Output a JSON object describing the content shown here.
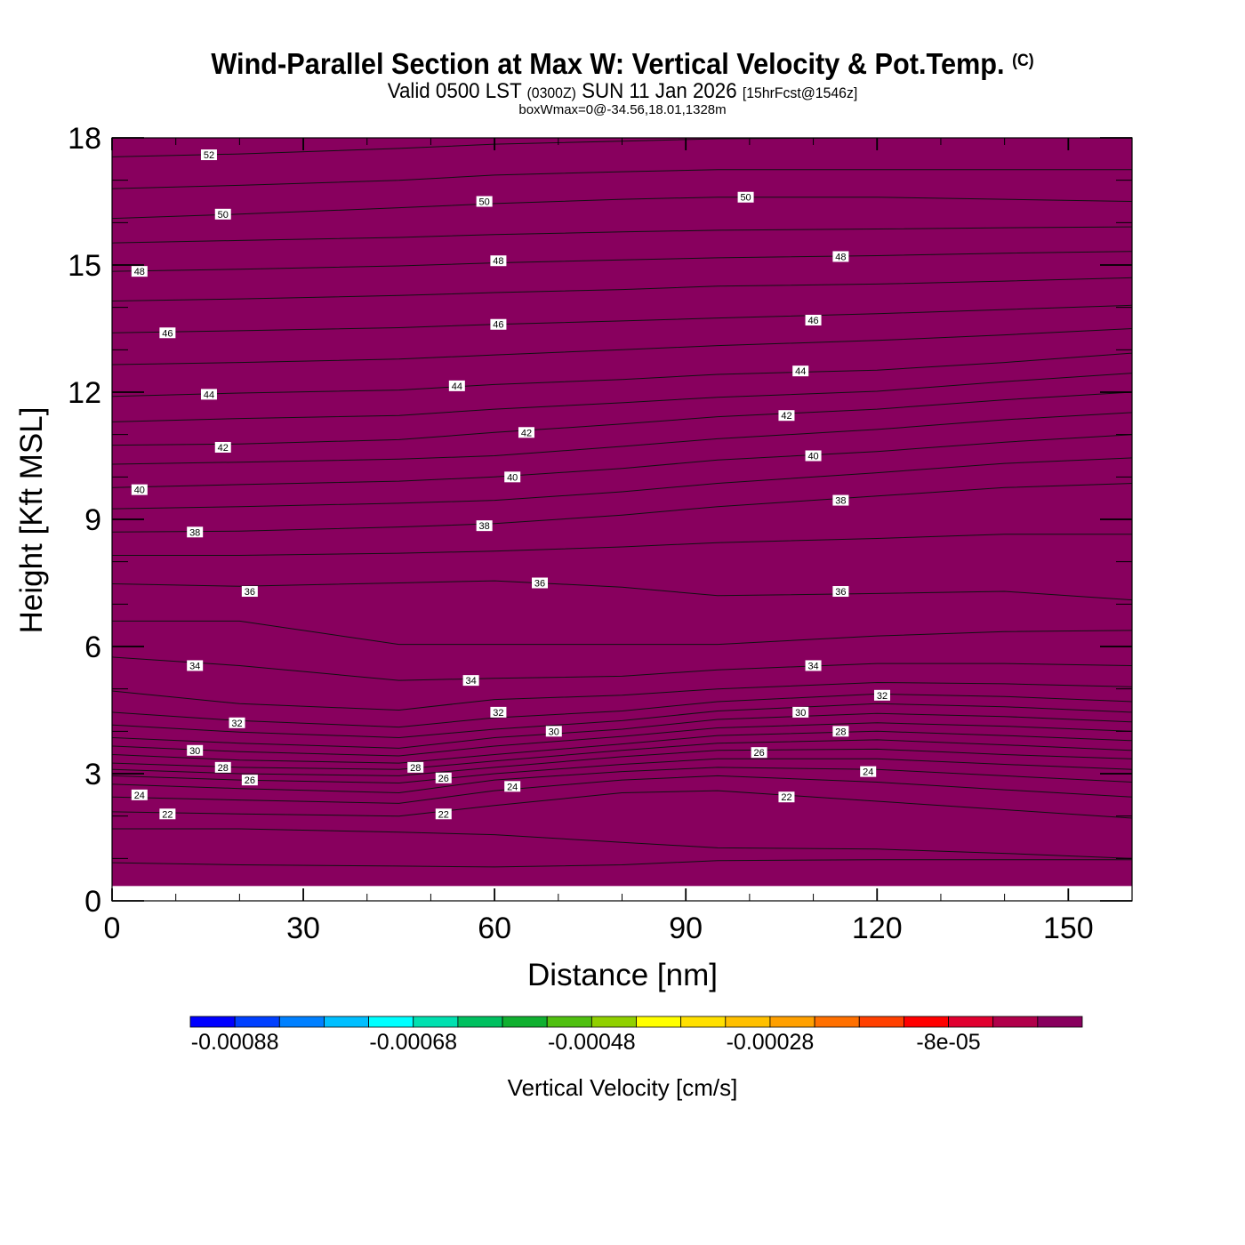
{
  "header": {
    "title_main": "Wind-Parallel Section at Max W: Vertical Velocity & Pot.Temp.",
    "title_mark": "(C)",
    "valid_prefix": "Valid 0500 LST",
    "valid_utc": "(0300Z)",
    "valid_date": "SUN 11 Jan 2026",
    "forecast_info": "[15hrFcst@1546z]",
    "box_info": "boxWmax=0@-34.56,18.01,1328m"
  },
  "chart_data": {
    "type": "heatmap",
    "fill_color": "#88005e",
    "fill_top": 18,
    "fill_bottom": 0.35,
    "xlabel": "Distance [nm]",
    "ylabel": "Height [Kft MSL]",
    "xlim": [
      0,
      160
    ],
    "ylim": [
      0,
      18
    ],
    "x_ticks": [
      0,
      30,
      60,
      90,
      120,
      150
    ],
    "y_ticks": [
      0,
      3,
      6,
      9,
      12,
      15,
      18
    ],
    "x_profile": [
      0,
      20,
      45,
      60,
      80,
      95,
      120,
      140,
      160
    ],
    "contours": [
      {
        "theta": 21,
        "z": [
          0.9,
          0.85,
          0.82,
          0.8,
          0.85,
          0.95,
          0.97,
          0.97,
          0.97
        ]
      },
      {
        "theta": 21.5,
        "z": [
          1.7,
          1.7,
          1.62,
          1.56,
          1.38,
          1.25,
          1.22,
          1.12,
          1.0
        ]
      },
      {
        "theta": 22,
        "z": [
          2.1,
          2.05,
          2.0,
          2.25,
          2.55,
          2.6,
          2.35,
          2.15,
          1.95
        ]
      },
      {
        "theta": 23,
        "z": [
          2.45,
          2.38,
          2.3,
          2.6,
          2.85,
          2.95,
          2.8,
          2.62,
          2.45
        ]
      },
      {
        "theta": 24,
        "z": [
          2.75,
          2.65,
          2.55,
          2.85,
          3.05,
          3.15,
          3.1,
          2.95,
          2.8
        ]
      },
      {
        "theta": 25,
        "z": [
          2.95,
          2.85,
          2.78,
          3.0,
          3.22,
          3.35,
          3.35,
          3.22,
          3.1
        ]
      },
      {
        "theta": 26,
        "z": [
          3.1,
          3.0,
          2.95,
          3.15,
          3.4,
          3.55,
          3.58,
          3.45,
          3.35
        ]
      },
      {
        "theta": 27,
        "z": [
          3.25,
          3.15,
          3.1,
          3.3,
          3.55,
          3.72,
          3.8,
          3.68,
          3.55
        ]
      },
      {
        "theta": 28,
        "z": [
          3.45,
          3.32,
          3.25,
          3.45,
          3.7,
          3.9,
          4.0,
          3.9,
          3.78
        ]
      },
      {
        "theta": 29,
        "z": [
          3.65,
          3.52,
          3.42,
          3.65,
          3.88,
          4.08,
          4.2,
          4.12,
          4.0
        ]
      },
      {
        "theta": 30,
        "z": [
          3.85,
          3.72,
          3.6,
          3.85,
          4.05,
          4.28,
          4.42,
          4.35,
          4.22
        ]
      },
      {
        "theta": 31,
        "z": [
          4.15,
          3.98,
          3.85,
          4.05,
          4.25,
          4.48,
          4.65,
          4.58,
          4.45
        ]
      },
      {
        "theta": 32,
        "z": [
          4.45,
          4.25,
          4.1,
          4.32,
          4.48,
          4.7,
          4.88,
          4.82,
          4.7
        ]
      },
      {
        "theta": 33,
        "z": [
          4.95,
          4.65,
          4.5,
          4.75,
          4.85,
          5.0,
          5.15,
          5.12,
          5.05
        ]
      },
      {
        "theta": 34,
        "z": [
          5.75,
          5.55,
          5.2,
          5.25,
          5.3,
          5.45,
          5.6,
          5.6,
          5.55
        ]
      },
      {
        "theta": 35,
        "z": [
          6.6,
          6.6,
          6.05,
          6.05,
          6.05,
          6.05,
          6.25,
          6.35,
          6.38
        ]
      },
      {
        "theta": 36,
        "z": [
          7.48,
          7.42,
          7.5,
          7.55,
          7.4,
          7.2,
          7.25,
          7.3,
          7.1
        ]
      },
      {
        "theta": 37,
        "z": [
          8.15,
          8.15,
          8.2,
          8.25,
          8.35,
          8.45,
          8.55,
          8.65,
          8.65
        ]
      },
      {
        "theta": 38,
        "z": [
          8.7,
          8.72,
          8.82,
          8.9,
          9.1,
          9.3,
          9.55,
          9.75,
          9.85
        ]
      },
      {
        "theta": 39,
        "z": [
          9.25,
          9.3,
          9.38,
          9.45,
          9.65,
          9.85,
          10.1,
          10.32,
          10.45
        ]
      },
      {
        "theta": 40,
        "z": [
          9.75,
          9.82,
          9.9,
          10.0,
          10.2,
          10.4,
          10.6,
          10.82,
          11.0
        ]
      },
      {
        "theta": 41,
        "z": [
          10.3,
          10.35,
          10.42,
          10.5,
          10.72,
          10.9,
          11.12,
          11.35,
          11.52
        ]
      },
      {
        "theta": 42,
        "z": [
          10.75,
          10.78,
          10.88,
          11.05,
          11.25,
          11.42,
          11.6,
          11.82,
          12.0
        ]
      },
      {
        "theta": 43,
        "z": [
          11.3,
          11.38,
          11.45,
          11.6,
          11.75,
          11.88,
          12.02,
          12.25,
          12.45
        ]
      },
      {
        "theta": 44,
        "z": [
          11.9,
          11.98,
          12.05,
          12.18,
          12.3,
          12.42,
          12.52,
          12.7,
          12.92
        ]
      },
      {
        "theta": 45,
        "z": [
          12.65,
          12.7,
          12.78,
          12.88,
          13.0,
          13.1,
          13.22,
          13.35,
          13.5
        ]
      },
      {
        "theta": 46,
        "z": [
          13.4,
          13.45,
          13.52,
          13.6,
          13.68,
          13.75,
          13.85,
          13.95,
          14.05
        ]
      },
      {
        "theta": 47,
        "z": [
          14.15,
          14.2,
          14.28,
          14.35,
          14.42,
          14.5,
          14.55,
          14.62,
          14.7
        ]
      },
      {
        "theta": 48,
        "z": [
          14.85,
          14.9,
          14.98,
          15.05,
          15.12,
          15.17,
          15.22,
          15.28,
          15.32
        ]
      },
      {
        "theta": 49,
        "z": [
          15.52,
          15.58,
          15.65,
          15.72,
          15.78,
          15.82,
          15.85,
          15.88,
          15.9
        ]
      },
      {
        "theta": 50,
        "z": [
          16.1,
          16.2,
          16.35,
          16.45,
          16.55,
          16.6,
          16.6,
          16.55,
          16.5
        ]
      },
      {
        "theta": 51,
        "z": [
          16.8,
          16.88,
          17.0,
          17.12,
          17.2,
          17.25,
          17.25,
          17.25,
          17.25
        ]
      },
      {
        "theta": 52,
        "z": [
          17.55,
          17.62,
          17.75,
          17.85,
          17.92,
          17.98,
          18.0,
          18.0,
          18.0
        ]
      }
    ],
    "contour_labels": [
      {
        "text": "52",
        "x": 15.2,
        "y": 17.6
      },
      {
        "text": "50",
        "x": 17.4,
        "y": 16.2
      },
      {
        "text": "50",
        "x": 58.4,
        "y": 16.5
      },
      {
        "text": "50",
        "x": 99.4,
        "y": 16.6
      },
      {
        "text": "48",
        "x": 4.3,
        "y": 14.85
      },
      {
        "text": "48",
        "x": 60.6,
        "y": 15.1
      },
      {
        "text": "48",
        "x": 114.3,
        "y": 15.2
      },
      {
        "text": "46",
        "x": 8.7,
        "y": 13.4
      },
      {
        "text": "46",
        "x": 60.6,
        "y": 13.6
      },
      {
        "text": "46",
        "x": 110.0,
        "y": 13.7
      },
      {
        "text": "44",
        "x": 15.2,
        "y": 11.95
      },
      {
        "text": "44",
        "x": 54.1,
        "y": 12.15
      },
      {
        "text": "44",
        "x": 108.0,
        "y": 12.5
      },
      {
        "text": "42",
        "x": 17.4,
        "y": 10.7
      },
      {
        "text": "42",
        "x": 65.0,
        "y": 11.05
      },
      {
        "text": "42",
        "x": 105.8,
        "y": 11.45
      },
      {
        "text": "40",
        "x": 4.3,
        "y": 9.7
      },
      {
        "text": "40",
        "x": 62.8,
        "y": 10.0
      },
      {
        "text": "40",
        "x": 110.0,
        "y": 10.5
      },
      {
        "text": "38",
        "x": 13.0,
        "y": 8.7
      },
      {
        "text": "38",
        "x": 58.4,
        "y": 8.85
      },
      {
        "text": "38",
        "x": 114.3,
        "y": 9.45
      },
      {
        "text": "36",
        "x": 21.6,
        "y": 7.3
      },
      {
        "text": "36",
        "x": 67.1,
        "y": 7.5
      },
      {
        "text": "36",
        "x": 114.3,
        "y": 7.3
      },
      {
        "text": "34",
        "x": 13.0,
        "y": 5.55
      },
      {
        "text": "34",
        "x": 56.3,
        "y": 5.2
      },
      {
        "text": "34",
        "x": 110.0,
        "y": 5.55
      },
      {
        "text": "32",
        "x": 19.6,
        "y": 4.2
      },
      {
        "text": "32",
        "x": 60.6,
        "y": 4.45
      },
      {
        "text": "32",
        "x": 120.8,
        "y": 4.85
      },
      {
        "text": "30",
        "x": 13.0,
        "y": 3.55
      },
      {
        "text": "30",
        "x": 69.3,
        "y": 4.0
      },
      {
        "text": "30",
        "x": 108.0,
        "y": 4.45
      },
      {
        "text": "28",
        "x": 17.4,
        "y": 3.15
      },
      {
        "text": "28",
        "x": 47.6,
        "y": 3.15
      },
      {
        "text": "28",
        "x": 114.3,
        "y": 4.0
      },
      {
        "text": "26",
        "x": 21.6,
        "y": 2.85
      },
      {
        "text": "26",
        "x": 52.0,
        "y": 2.9
      },
      {
        "text": "26",
        "x": 101.5,
        "y": 3.5
      },
      {
        "text": "24",
        "x": 4.3,
        "y": 2.5
      },
      {
        "text": "24",
        "x": 62.8,
        "y": 2.7
      },
      {
        "text": "24",
        "x": 118.6,
        "y": 3.05
      },
      {
        "text": "22",
        "x": 8.7,
        "y": 2.05
      },
      {
        "text": "22",
        "x": 52.0,
        "y": 2.05
      },
      {
        "text": "22",
        "x": 105.8,
        "y": 2.45
      }
    ],
    "colorbar": {
      "title": "Vertical Velocity [cm/s]",
      "colors": [
        "#0000ff",
        "#0040ff",
        "#0080ff",
        "#00bfff",
        "#00ffff",
        "#00e0b0",
        "#00c060",
        "#10b030",
        "#50c010",
        "#90d000",
        "#ffff00",
        "#ffe000",
        "#ffc000",
        "#ffa000",
        "#ff7000",
        "#ff4000",
        "#ff0000",
        "#e0002f",
        "#b0004a",
        "#88005e"
      ],
      "tick_labels": [
        "-0.00088",
        "-0.00068",
        "-0.00048",
        "-0.00028",
        "-8e-05"
      ]
    }
  }
}
